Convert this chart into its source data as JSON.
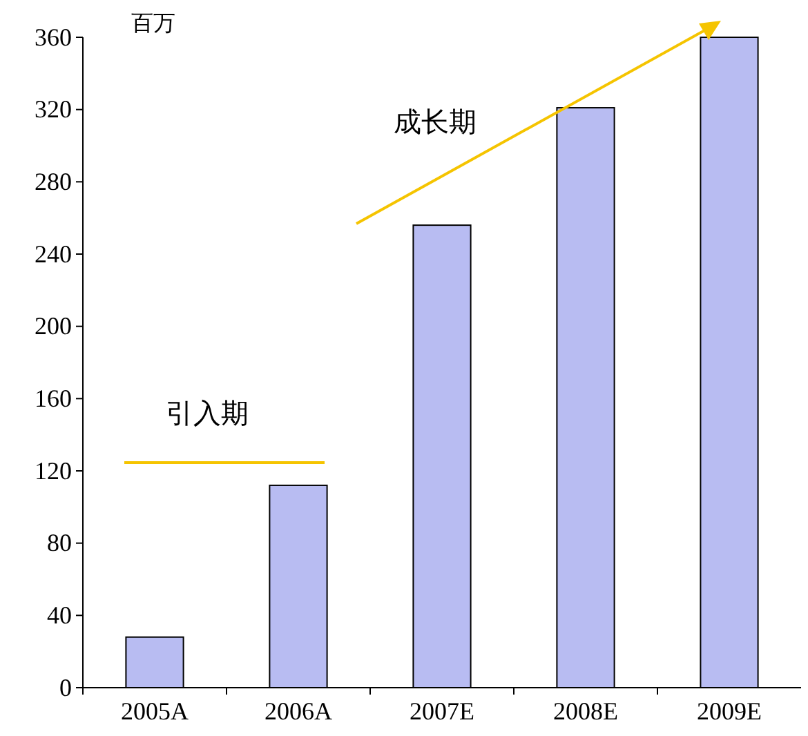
{
  "chart_data": {
    "type": "bar",
    "ylabel": "百万",
    "categories": [
      "2005A",
      "2006A",
      "2007E",
      "2008E",
      "2009E"
    ],
    "values": [
      28,
      112,
      256,
      321,
      360
    ],
    "color": "#b8bcf2",
    "ylim": [
      0,
      360
    ],
    "yticks": [
      0,
      40,
      80,
      120,
      160,
      200,
      240,
      280,
      320,
      360
    ],
    "annotations": [
      "引入期",
      "成长期"
    ]
  }
}
